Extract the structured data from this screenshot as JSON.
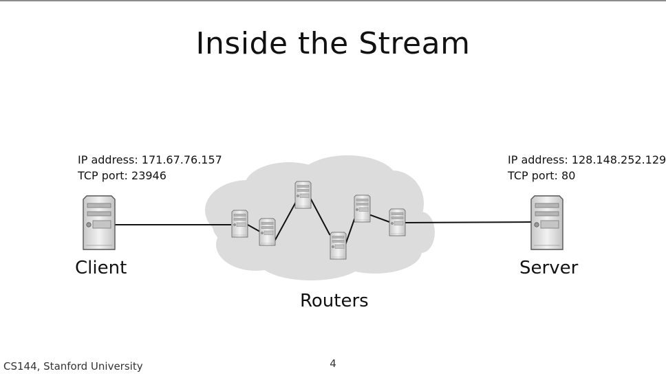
{
  "slide": {
    "title": "Inside the Stream",
    "footer": "CS144, Stanford University",
    "page_number": "4"
  },
  "client": {
    "ip_line": "IP address: 171.67.76.157",
    "port_line": "TCP port: 23946",
    "name": "Client",
    "icon": "server-tower-icon"
  },
  "server": {
    "ip_line": "IP address: 128.148.252.129",
    "port_line": "TCP port: 80",
    "name": "Server",
    "icon": "server-tower-icon"
  },
  "network": {
    "label": "Routers",
    "router_count": 6,
    "cloud_color": "#dcdcdc"
  }
}
